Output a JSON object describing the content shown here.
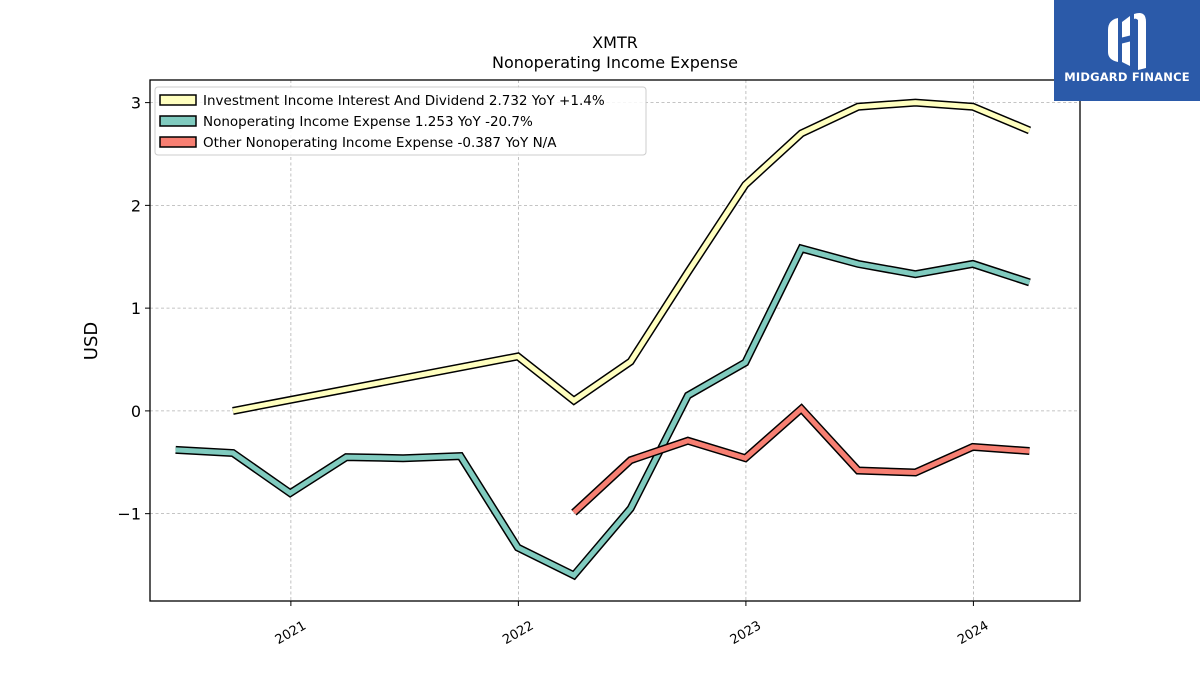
{
  "logo": {
    "text": "MIDGARD FINANCE",
    "icon": "midgard-finance-logo-icon",
    "color": "#2b5aa9"
  },
  "chart_data": {
    "type": "line",
    "title": "XMTR",
    "subtitle": "Nonoperating Income Expense",
    "ylabel": "USD",
    "xlabel": "",
    "xlim": [
      "2020-05-20",
      "2024-06-20"
    ],
    "ylim": [
      -1.85,
      3.22
    ],
    "yticks": [
      -1,
      0,
      1,
      2,
      3
    ],
    "ytick_labels": [
      "−1",
      "0",
      "1",
      "2",
      "3"
    ],
    "xticks": [
      "2021-01-01",
      "2022-01-01",
      "2023-01-01",
      "2024-01-01"
    ],
    "xtick_labels": [
      "2021",
      "2022",
      "2023",
      "2024"
    ],
    "grid": true,
    "legend_position": "top-left",
    "series": [
      {
        "name": "Investment Income Interest And Dividend",
        "legend_label": "Investment Income Interest And Dividend  2.732 YoY +1.4%",
        "color": "#ffffbf",
        "x": [
          "2020-09-30",
          "2021-12-31",
          "2022-03-31",
          "2022-06-30",
          "2022-09-30",
          "2022-12-31",
          "2023-03-31",
          "2023-06-30",
          "2023-09-30",
          "2023-12-31",
          "2024-03-31"
        ],
        "y": [
          0.0,
          0.53,
          0.1,
          0.48,
          1.35,
          2.2,
          2.7,
          2.96,
          3.0,
          2.96,
          2.73
        ]
      },
      {
        "name": "Nonoperating Income Expense",
        "legend_label": "Nonoperating Income Expense  1.253 YoY -20.7%",
        "color": "#80cbbf",
        "x": [
          "2020-06-30",
          "2020-09-30",
          "2020-12-31",
          "2021-03-31",
          "2021-06-30",
          "2021-09-30",
          "2021-12-31",
          "2022-03-31",
          "2022-06-30",
          "2022-09-30",
          "2022-12-31",
          "2023-03-31",
          "2023-06-30",
          "2023-09-30",
          "2023-12-31",
          "2024-03-31"
        ],
        "y": [
          -0.38,
          -0.41,
          -0.8,
          -0.45,
          -0.46,
          -0.44,
          -1.33,
          -1.6,
          -0.95,
          0.15,
          0.47,
          1.58,
          1.43,
          1.33,
          1.43,
          1.25
        ]
      },
      {
        "name": "Other Nonoperating Income Expense",
        "legend_label": "Other Nonoperating Income Expense  -0.387 YoY N/A",
        "color": "#f77f72",
        "x": [
          "2022-03-31",
          "2022-06-30",
          "2022-09-30",
          "2022-12-31",
          "2023-03-31",
          "2023-06-30",
          "2023-09-30",
          "2023-12-31",
          "2024-03-31"
        ],
        "y": [
          -0.99,
          -0.48,
          -0.29,
          -0.46,
          0.02,
          -0.58,
          -0.6,
          -0.35,
          -0.39
        ]
      }
    ]
  }
}
